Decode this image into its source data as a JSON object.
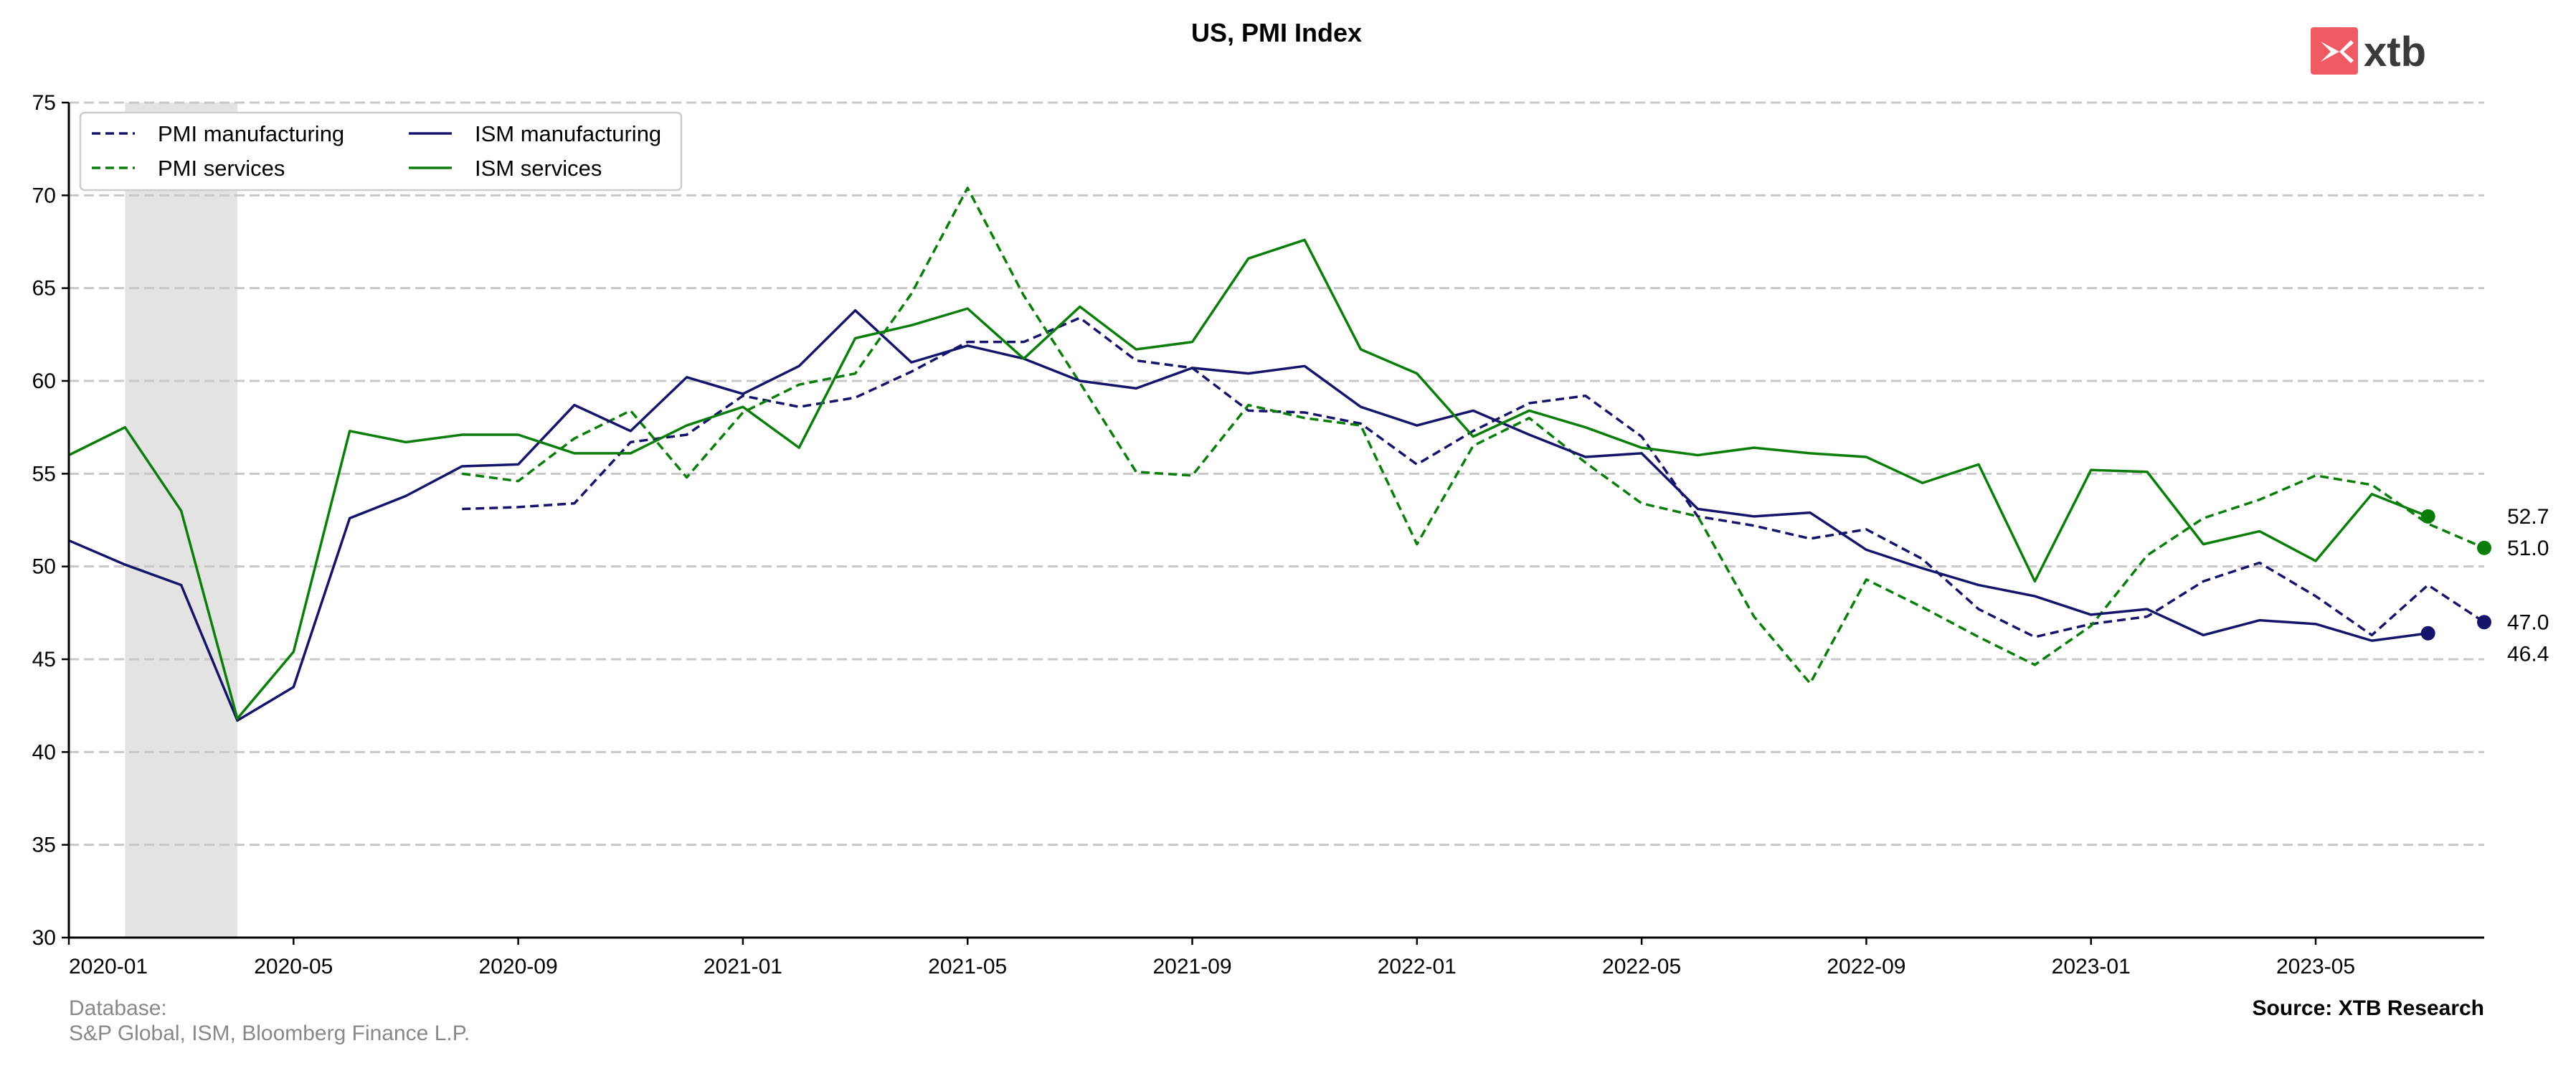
{
  "chart_data": {
    "type": "line",
    "title": "US, PMI Index",
    "xlabel": "",
    "ylabel": "",
    "x": [
      "2020-01",
      "2020-02",
      "2020-03",
      "2020-04",
      "2020-05",
      "2020-06",
      "2020-07",
      "2020-08",
      "2020-09",
      "2020-10",
      "2020-11",
      "2020-12",
      "2021-01",
      "2021-02",
      "2021-03",
      "2021-04",
      "2021-05",
      "2021-06",
      "2021-07",
      "2021-08",
      "2021-09",
      "2021-10",
      "2021-11",
      "2021-12",
      "2022-01",
      "2022-02",
      "2022-03",
      "2022-04",
      "2022-05",
      "2022-06",
      "2022-07",
      "2022-08",
      "2022-09",
      "2022-10",
      "2022-11",
      "2022-12",
      "2023-01",
      "2023-02",
      "2023-03",
      "2023-04",
      "2023-05",
      "2023-06",
      "2023-07",
      "2023-08"
    ],
    "xticks": [
      "2020-01",
      "2020-05",
      "2020-09",
      "2021-01",
      "2021-05",
      "2021-09",
      "2022-01",
      "2022-05",
      "2022-09",
      "2023-01",
      "2023-05"
    ],
    "ylim": [
      30,
      75
    ],
    "yticks": [
      30,
      35,
      40,
      45,
      50,
      55,
      60,
      65,
      70,
      75
    ],
    "grid": "horizontal-dashed",
    "legend_position": "top-left",
    "shaded_period": [
      "2020-02",
      "2020-04"
    ],
    "series": [
      {
        "name": "PMI manufacturing",
        "color": "#14146b",
        "style": "dashed",
        "values": [
          null,
          null,
          null,
          null,
          null,
          null,
          null,
          53.1,
          53.2,
          53.4,
          56.7,
          57.1,
          59.2,
          58.6,
          59.1,
          60.5,
          62.1,
          62.1,
          63.4,
          61.1,
          60.7,
          58.4,
          58.3,
          57.7,
          55.5,
          57.3,
          58.8,
          59.2,
          57.0,
          52.7,
          52.2,
          51.5,
          52.0,
          50.4,
          47.7,
          46.2,
          46.9,
          47.3,
          49.2,
          50.2,
          48.4,
          46.3,
          49.0,
          47.0
        ],
        "end_label": "47.0"
      },
      {
        "name": "PMI services",
        "color": "#0a7d0a",
        "style": "dashed",
        "values": [
          null,
          null,
          null,
          null,
          null,
          null,
          null,
          55.0,
          54.6,
          56.9,
          58.4,
          54.8,
          58.3,
          59.8,
          60.4,
          64.7,
          70.4,
          64.6,
          59.9,
          55.1,
          54.9,
          58.7,
          58.0,
          57.6,
          51.2,
          56.5,
          58.0,
          55.6,
          53.4,
          52.7,
          47.3,
          43.7,
          49.3,
          47.8,
          46.2,
          44.7,
          46.8,
          50.6,
          52.6,
          53.6,
          54.9,
          54.4,
          52.3,
          51.0
        ],
        "end_label": "51.0"
      },
      {
        "name": "ISM manufacturing",
        "color": "#14146b",
        "style": "solid",
        "values": [
          51.4,
          50.1,
          49.0,
          41.7,
          43.5,
          52.6,
          53.8,
          55.4,
          55.5,
          58.7,
          57.3,
          60.2,
          59.3,
          60.8,
          63.8,
          61.0,
          61.9,
          61.2,
          60.0,
          59.6,
          60.7,
          60.4,
          60.8,
          58.6,
          57.6,
          58.4,
          57.1,
          55.9,
          56.1,
          53.1,
          52.7,
          52.9,
          50.9,
          49.9,
          49.0,
          48.4,
          47.4,
          47.7,
          46.3,
          47.1,
          46.9,
          46.0,
          46.4,
          null
        ],
        "end_label": "46.4"
      },
      {
        "name": "ISM services",
        "color": "#0a7d0a",
        "style": "solid",
        "values": [
          56.0,
          57.5,
          53.0,
          41.8,
          45.4,
          57.3,
          56.7,
          57.1,
          57.1,
          56.1,
          56.1,
          57.6,
          58.6,
          56.4,
          62.3,
          63.0,
          63.9,
          61.2,
          64.0,
          61.7,
          62.1,
          66.6,
          67.6,
          61.7,
          60.4,
          57.0,
          58.4,
          57.5,
          56.4,
          56.0,
          56.4,
          56.1,
          55.9,
          54.5,
          55.5,
          49.2,
          55.2,
          55.1,
          51.2,
          51.9,
          50.3,
          53.9,
          52.7,
          null
        ],
        "end_label": "52.7"
      }
    ]
  },
  "footer": {
    "database_label": "Database:",
    "database_sources": "S&P Global, ISM, Bloomberg Finance L.P.",
    "source": "Source: XTB Research"
  },
  "logo": {
    "text": "xtb",
    "color": "#f05a63"
  }
}
